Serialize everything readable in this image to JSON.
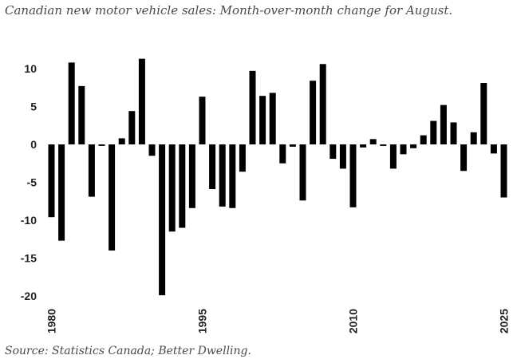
{
  "header": {
    "title": "Canadian new motor vehicle sales: Month-over-month change for August."
  },
  "footer": {
    "source": "Source: Statistics Canada; Better Dwelling."
  },
  "colors": {
    "bar": "#000000",
    "text": "#222222",
    "caption": "#4a4a4a"
  },
  "chart_data": {
    "type": "bar",
    "title": "Canadian new motor vehicle sales: Month-over-month change for August.",
    "xlabel": "",
    "ylabel": "",
    "ylim": [
      -20,
      12
    ],
    "yticks": [
      10,
      5,
      0,
      -5,
      -10,
      -15,
      -20
    ],
    "xtick_labels": [
      "1980",
      "1995",
      "2010",
      "2025"
    ],
    "grid": false,
    "categories": [
      1980,
      1981,
      1982,
      1983,
      1984,
      1985,
      1986,
      1987,
      1988,
      1989,
      1990,
      1991,
      1992,
      1993,
      1994,
      1995,
      1996,
      1997,
      1998,
      1999,
      2000,
      2001,
      2002,
      2003,
      2004,
      2005,
      2006,
      2007,
      2008,
      2009,
      2010,
      2011,
      2012,
      2013,
      2014,
      2015,
      2016,
      2017,
      2018,
      2019,
      2020,
      2021,
      2022,
      2023,
      2024,
      2025
    ],
    "values": [
      -9.6,
      -12.7,
      10.8,
      7.7,
      -6.9,
      -0.2,
      -14.0,
      0.8,
      4.4,
      11.3,
      -1.5,
      -19.9,
      -11.5,
      -11.0,
      -8.4,
      6.3,
      -5.9,
      -8.2,
      -8.4,
      -3.6,
      9.7,
      6.4,
      6.8,
      -2.5,
      -0.3,
      -7.4,
      8.4,
      10.6,
      -1.9,
      -3.2,
      -8.3,
      -0.4,
      0.7,
      -0.2,
      -3.2,
      -1.3,
      -0.5,
      1.2,
      3.1,
      5.2,
      2.9,
      -3.5,
      1.6,
      8.1,
      -1.2,
      -7.0
    ]
  }
}
